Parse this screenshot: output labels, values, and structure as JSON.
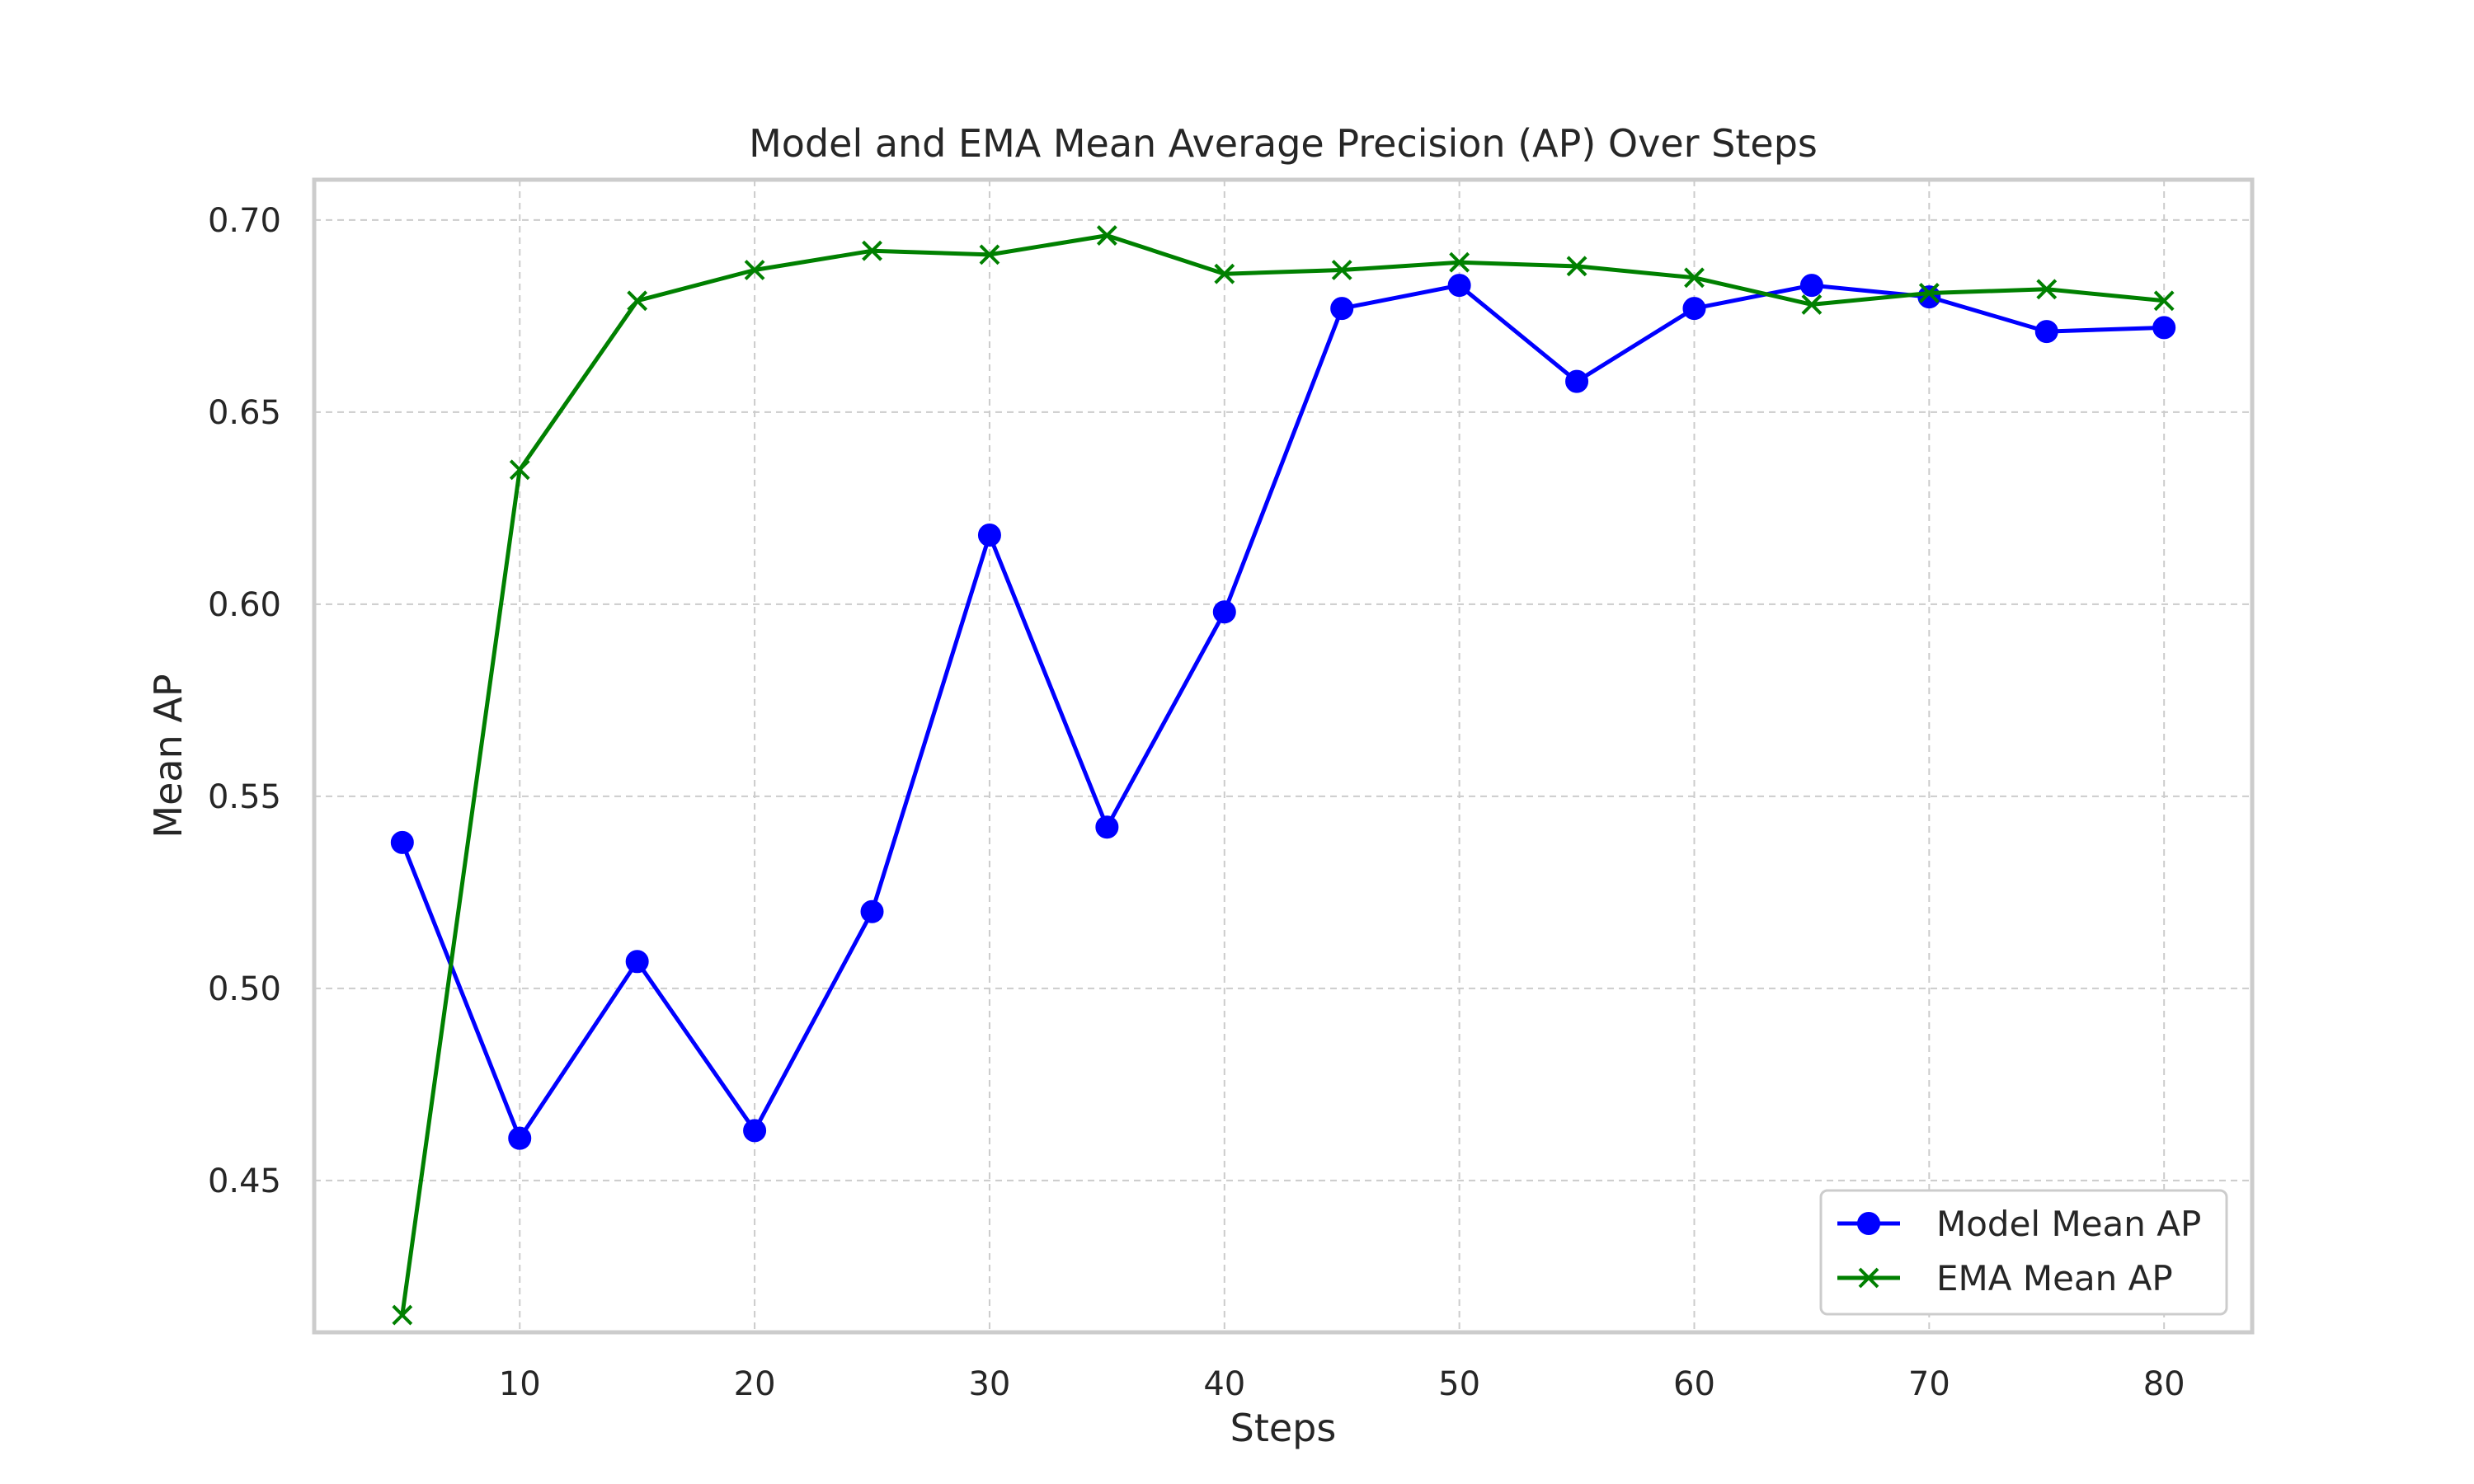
{
  "chart_data": {
    "type": "line",
    "title": "Model and EMA Mean Average Precision (AP) Over Steps",
    "xlabel": "Steps",
    "ylabel": "Mean AP",
    "xlim": [
      1.25,
      83.75
    ],
    "ylim": [
      0.4105,
      0.7105
    ],
    "xticks": [
      10,
      20,
      30,
      40,
      50,
      60,
      70,
      80
    ],
    "yticks": [
      0.45,
      0.5,
      0.55,
      0.6,
      0.65,
      0.7
    ],
    "ytick_labels": [
      "0.45",
      "0.50",
      "0.55",
      "0.60",
      "0.65",
      "0.70"
    ],
    "grid": true,
    "legend_position": "lower-right",
    "x": [
      5,
      10,
      15,
      20,
      25,
      30,
      35,
      40,
      45,
      50,
      55,
      60,
      65,
      70,
      75,
      80
    ],
    "series": [
      {
        "name": "Model Mean AP",
        "color": "#0000ff",
        "marker": "circle",
        "values": [
          0.538,
          0.461,
          0.507,
          0.463,
          0.52,
          0.618,
          0.542,
          0.598,
          0.677,
          0.683,
          0.658,
          0.677,
          0.683,
          0.68,
          0.671,
          0.672
        ]
      },
      {
        "name": "EMA Mean AP",
        "color": "#008000",
        "marker": "x",
        "values": [
          0.415,
          0.635,
          0.679,
          0.687,
          0.692,
          0.691,
          0.696,
          0.686,
          0.687,
          0.689,
          0.688,
          0.685,
          0.678,
          0.681,
          0.682,
          0.679
        ]
      }
    ]
  }
}
